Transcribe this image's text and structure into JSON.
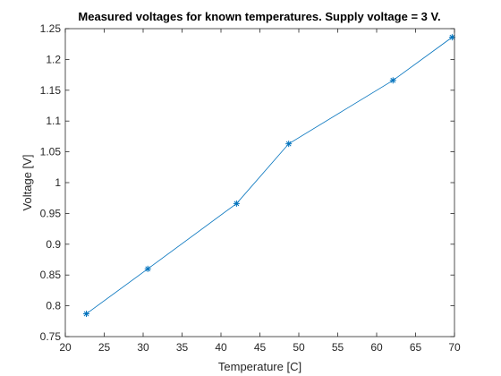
{
  "chart_data": {
    "type": "line",
    "title": "Measured voltages for known temperatures. Supply voltage = 3 V.",
    "xlabel": "Temperature [C]",
    "ylabel": "Voltage [V]",
    "xlim": [
      20,
      70
    ],
    "ylim": [
      0.75,
      1.25
    ],
    "x_ticks": [
      "20",
      "25",
      "30",
      "35",
      "40",
      "45",
      "50",
      "55",
      "60",
      "65",
      "70"
    ],
    "y_ticks": [
      "0.75",
      "0.8",
      "0.85",
      "0.9",
      "0.95",
      "1",
      "1.05",
      "1.1",
      "1.15",
      "1.2",
      "1.25"
    ],
    "grid": false,
    "marker": "asterisk",
    "series_color": "#0072bd",
    "series": [
      {
        "x": [
          22.7,
          30.6,
          42.0,
          48.7,
          62.1,
          69.7
        ],
        "y": [
          0.787,
          0.86,
          0.966,
          1.063,
          1.166,
          1.236
        ]
      }
    ]
  }
}
